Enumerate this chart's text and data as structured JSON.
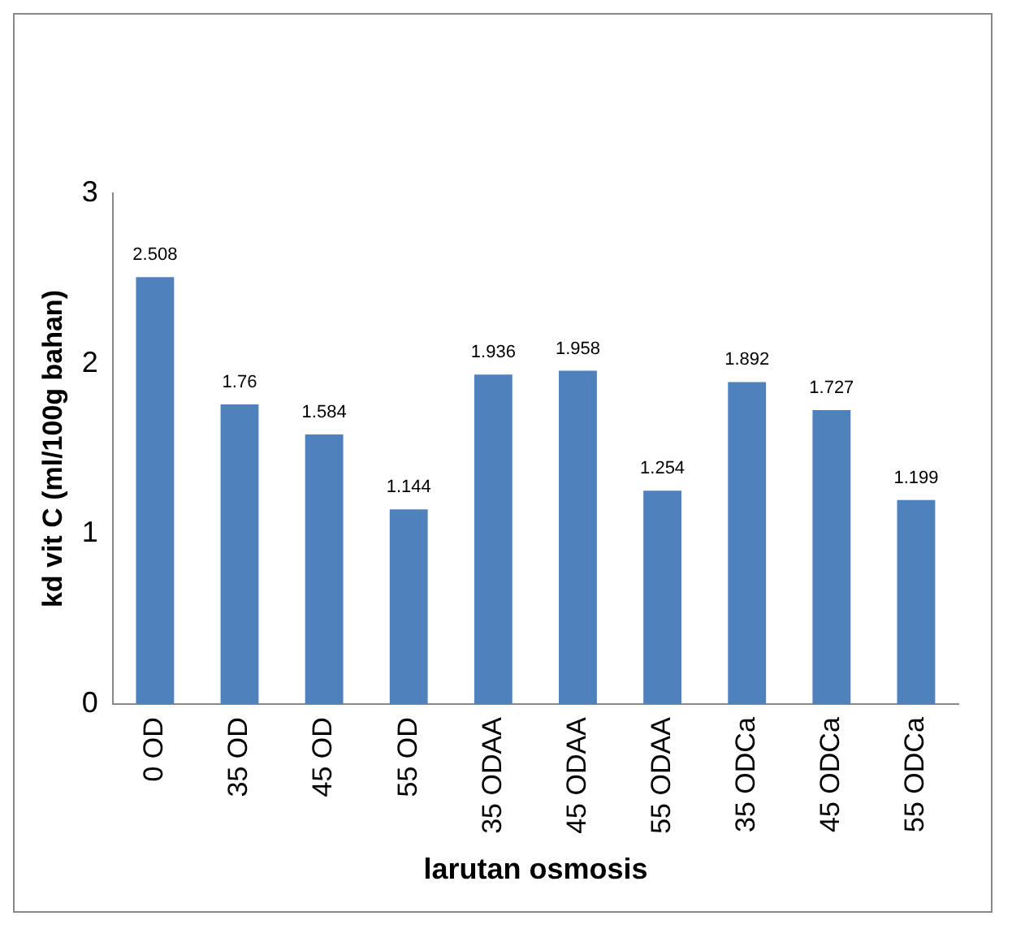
{
  "chart_data": {
    "type": "bar",
    "xlabel": "larutan osmosis",
    "ylabel": "kd vit C (ml/100g bahan)",
    "categories": [
      "0 OD",
      "35 OD",
      "45 OD",
      "55 OD",
      "35 ODAA",
      "45 ODAA",
      "55 ODAA",
      "35 ODCa",
      "45 ODCa",
      "55 ODCa"
    ],
    "values": [
      2.508,
      1.76,
      1.584,
      1.144,
      1.936,
      1.958,
      1.254,
      1.892,
      1.727,
      1.199
    ],
    "color": "#4f81bd",
    "ylim": [
      0,
      3
    ],
    "yticks": [
      0,
      1,
      2,
      3
    ],
    "grid": false,
    "legend": false,
    "data_labels": true
  }
}
